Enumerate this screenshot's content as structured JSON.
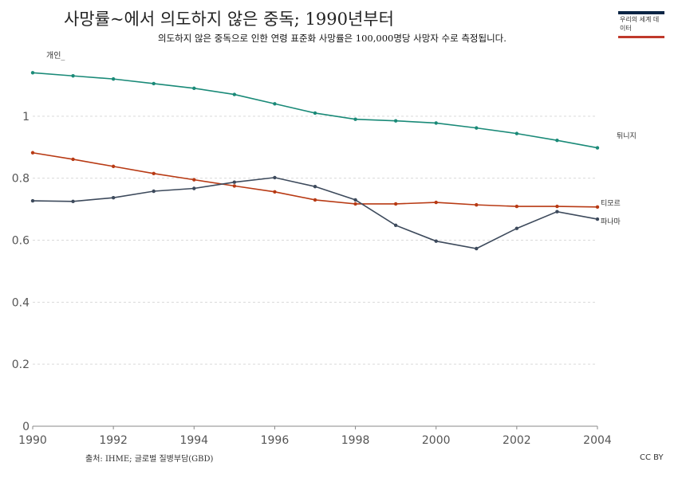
{
  "header": {
    "title": "사망률~에서 의도하지 않은 중독; 1990년부터",
    "subtitle": "의도하지 않은 중독으로 인한 연령 표준화 사망률은 100,000명당 사망자 수로 측정됩니다.",
    "y_unit": "개인_"
  },
  "logo": {
    "text": "우리의 세계 데이터"
  },
  "footer": {
    "source": "출처: IHME; 글로벌 질병부담(GBD)",
    "license": "CC BY"
  },
  "chart_data": {
    "type": "line",
    "x": [
      1990,
      1991,
      1992,
      1993,
      1994,
      1995,
      1996,
      1997,
      1998,
      1999,
      2000,
      2001,
      2002,
      2003,
      2004
    ],
    "xlim": [
      1990,
      2004
    ],
    "ylim": [
      0,
      1.2
    ],
    "x_ticks": [
      1990,
      1992,
      1994,
      1996,
      1998,
      2000,
      2002,
      2004
    ],
    "y_ticks": [
      0,
      0.2,
      0.4,
      0.6,
      0.8,
      1
    ],
    "y_tick_labels": [
      "0",
      "0.2",
      "0.4",
      "0.6",
      "0.8",
      "1"
    ],
    "grid": "horizontal-dashed",
    "series": [
      {
        "name": "튀니지",
        "color": "#1a8a78",
        "values": [
          1.14,
          1.13,
          1.12,
          1.105,
          1.09,
          1.07,
          1.04,
          1.01,
          0.99,
          0.985,
          0.978,
          0.962,
          0.944,
          0.922,
          0.898
        ]
      },
      {
        "name": "티모르",
        "color": "#b83a14",
        "values": [
          0.882,
          0.861,
          0.838,
          0.815,
          0.795,
          0.775,
          0.756,
          0.73,
          0.717,
          0.717,
          0.722,
          0.714,
          0.709,
          0.709,
          0.707
        ]
      },
      {
        "name": "파나마",
        "color": "#3d4a5c",
        "values": [
          0.727,
          0.725,
          0.737,
          0.758,
          0.767,
          0.787,
          0.802,
          0.773,
          0.73,
          0.648,
          0.597,
          0.573,
          0.638,
          0.692,
          0.668
        ]
      }
    ]
  }
}
